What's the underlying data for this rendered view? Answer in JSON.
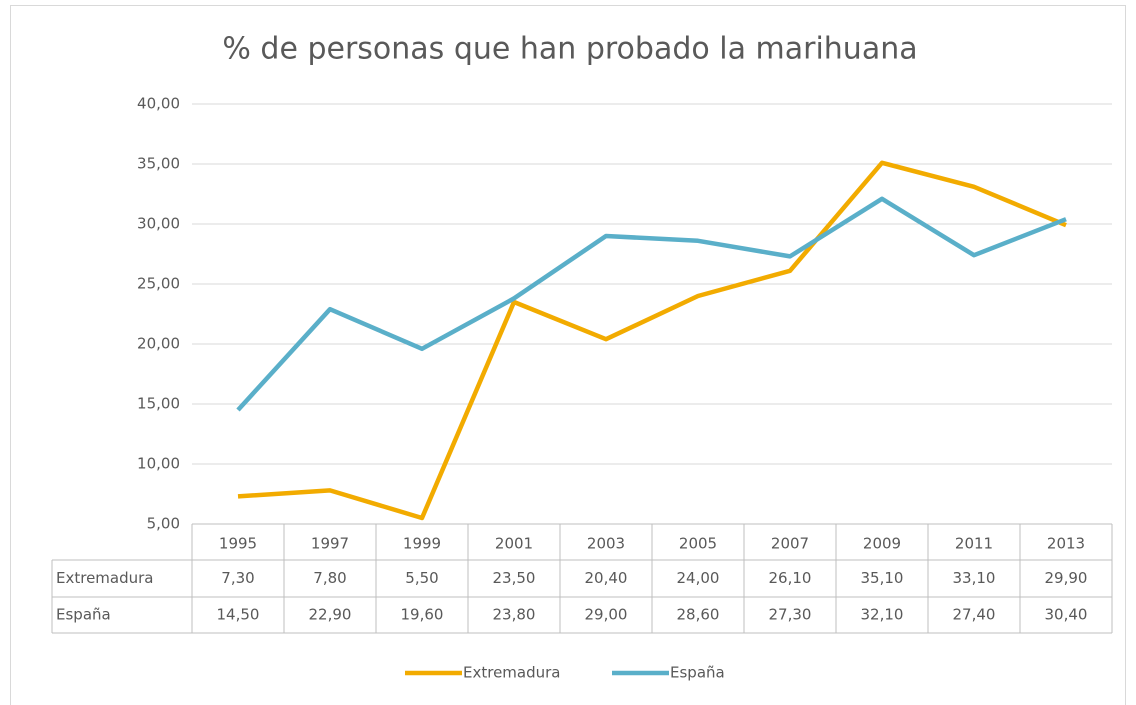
{
  "chart_data": {
    "type": "line",
    "title": "% de personas que han probado la marihuana",
    "categories": [
      "1995",
      "1997",
      "1999",
      "2001",
      "2003",
      "2005",
      "2007",
      "2009",
      "2011",
      "2013"
    ],
    "series": [
      {
        "name": "Extremadura",
        "color": "#f2ab00",
        "values": [
          7.3,
          7.8,
          5.5,
          23.5,
          20.4,
          24.0,
          26.1,
          35.1,
          33.1,
          29.9
        ],
        "value_labels": [
          "7,30",
          "7,80",
          "5,50",
          "23,50",
          "20,40",
          "24,00",
          "26,10",
          "35,10",
          "33,10",
          "29,90"
        ]
      },
      {
        "name": "España",
        "color": "#5aafc9",
        "values": [
          14.5,
          22.9,
          19.6,
          23.8,
          29.0,
          28.6,
          27.3,
          32.1,
          27.4,
          30.4
        ],
        "value_labels": [
          "14,50",
          "22,90",
          "19,60",
          "23,80",
          "29,00",
          "28,60",
          "27,30",
          "32,10",
          "27,40",
          "30,40"
        ]
      }
    ],
    "ylim": [
      5,
      40
    ],
    "yticks": [
      {
        "value": 5,
        "label": "5,00"
      },
      {
        "value": 10,
        "label": "10,00"
      },
      {
        "value": 15,
        "label": "15,00"
      },
      {
        "value": 20,
        "label": "20,00"
      },
      {
        "value": 25,
        "label": "25,00"
      },
      {
        "value": 30,
        "label": "30,00"
      },
      {
        "value": 35,
        "label": "35,00"
      },
      {
        "value": 40,
        "label": "40,00"
      }
    ],
    "grid": true,
    "legend": "bottom"
  }
}
